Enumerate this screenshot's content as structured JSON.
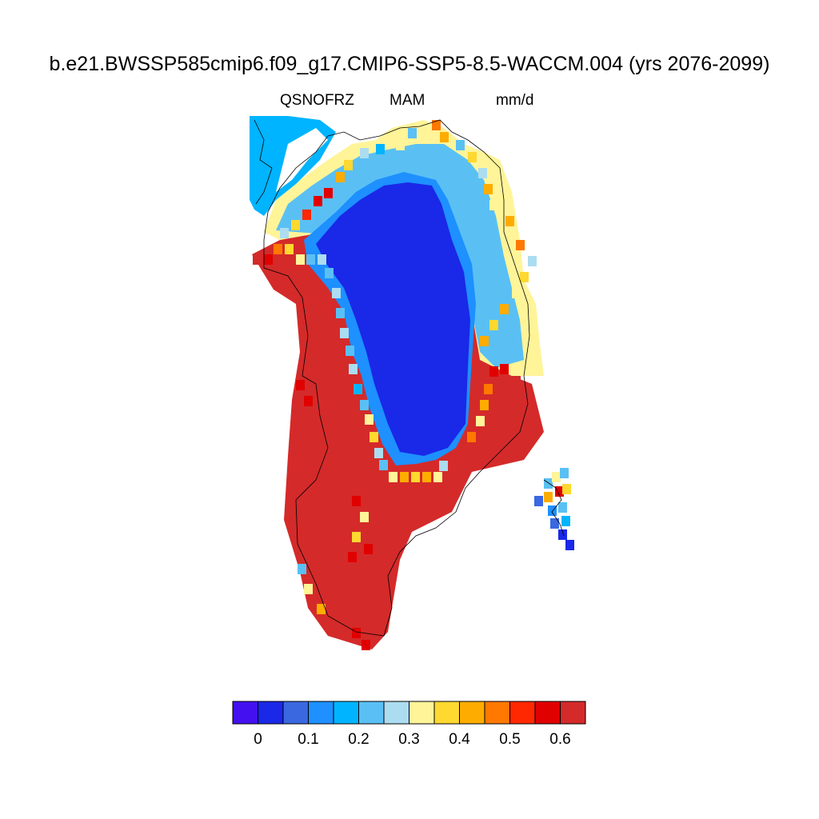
{
  "title": "b.e21.BWSSP585cmip6.f09_g17.CMIP6-SSP5-8.5-WACCM.004 (yrs 2076-2099)",
  "subtitle": {
    "left": "QSNOFRZ",
    "center": "MAM",
    "right": "mm/d"
  },
  "colorbar": {
    "colors": [
      "#4410f0",
      "#1a28e8",
      "#3a68e0",
      "#1e90ff",
      "#00b4ff",
      "#5ac0f4",
      "#acdcf0",
      "#fff498",
      "#ffd830",
      "#ffac00",
      "#ff7800",
      "#ff2800",
      "#e00000",
      "#d42a2a"
    ],
    "tick_labels": [
      "0",
      "0.1",
      "0.2",
      "0.3",
      "0.4",
      "0.5",
      "0.6"
    ]
  },
  "map": {
    "region": "Greenland",
    "colors": {
      "interior": "#1a28e8",
      "periphery": "#d42a2a",
      "coastline": "#000000"
    }
  }
}
